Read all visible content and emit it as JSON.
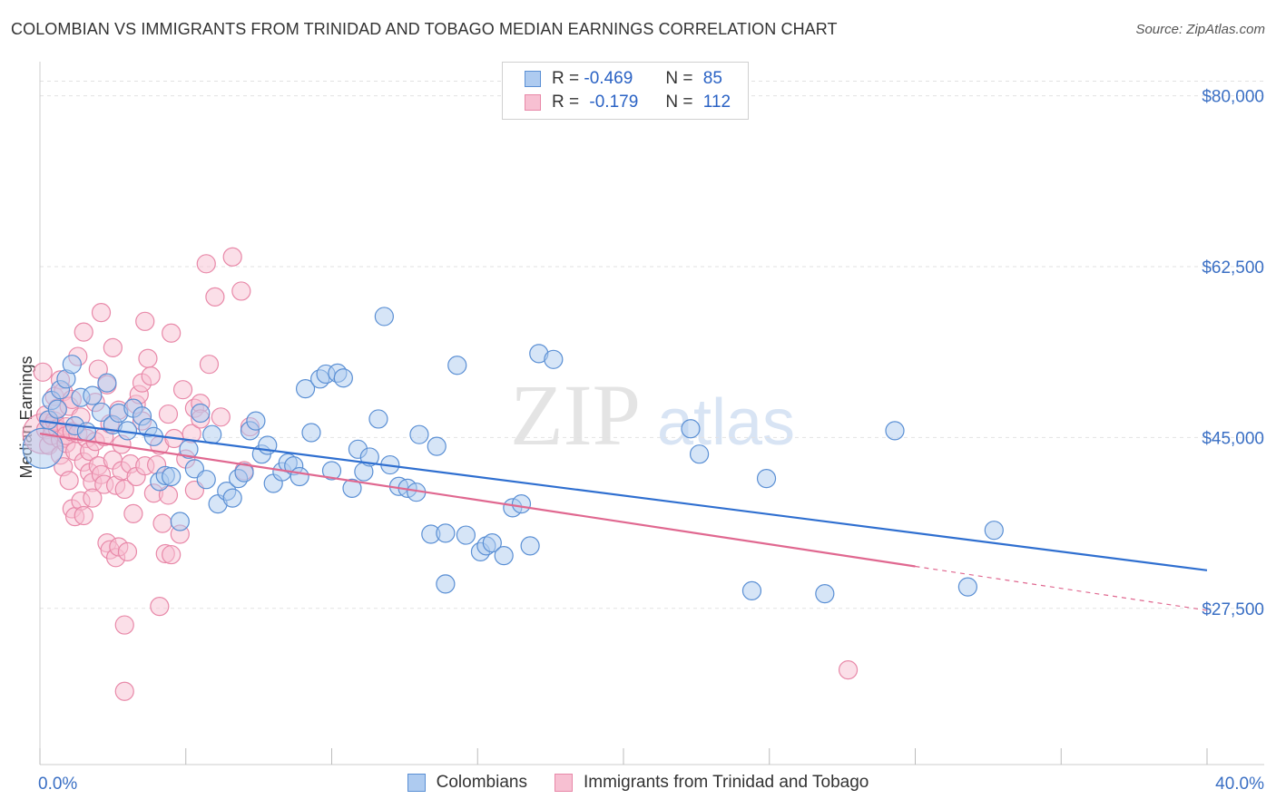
{
  "title": "COLOMBIAN VS IMMIGRANTS FROM TRINIDAD AND TOBAGO MEDIAN EARNINGS CORRELATION CHART",
  "source": "Source: ZipAtlas.com",
  "watermark": {
    "zip": "ZIP",
    "atlas": "atlas"
  },
  "legend": {
    "r_label": "R =",
    "n_label": "N =",
    "rows": [
      {
        "r": "-0.469",
        "n": "85"
      },
      {
        "r": "-0.179",
        "n": "112"
      }
    ]
  },
  "colors": {
    "blue_fill": "#aecbf0",
    "blue_stroke": "#5a8fd4",
    "blue_line": "#2f6fd0",
    "pink_fill": "#f7c0d2",
    "pink_stroke": "#e888a8",
    "pink_line": "#e06890",
    "axis_text": "#3a6fc4",
    "grid": "#e2e2e2"
  },
  "chart_data": {
    "type": "scatter",
    "title": "COLOMBIAN VS IMMIGRANTS FROM TRINIDAD AND TOBAGO MEDIAN EARNINGS CORRELATION CHART",
    "xlabel": "",
    "ylabel": "Median Earnings",
    "x_unit": "percent",
    "xlim": [
      0,
      40
    ],
    "ylim": [
      11500,
      83500
    ],
    "x_tick_labels": [
      "0.0%",
      "40.0%"
    ],
    "y_ticks": [
      27500,
      45000,
      62500,
      80000
    ],
    "y_tick_labels": [
      "$27,500",
      "$45,000",
      "$62,500",
      "$80,000"
    ],
    "grid": true,
    "legend_position": "top-center",
    "series": [
      {
        "name": "Colombians",
        "r": -0.469,
        "n": 85,
        "trend": {
          "x0": 0,
          "y0": 46700,
          "x1": 40,
          "y1": 31400
        },
        "points": [
          [
            0.1,
            43900,
            22
          ],
          [
            0.3,
            46800,
            10
          ],
          [
            0.4,
            48800,
            10
          ],
          [
            0.6,
            47900,
            10
          ],
          [
            0.7,
            49900,
            10
          ],
          [
            0.9,
            51000,
            10
          ],
          [
            1.1,
            52500,
            10
          ],
          [
            1.2,
            46200,
            10
          ],
          [
            1.4,
            49100,
            10
          ],
          [
            1.6,
            45600,
            10
          ],
          [
            1.8,
            49300,
            10
          ],
          [
            2.1,
            47600,
            10
          ],
          [
            2.3,
            50600,
            10
          ],
          [
            2.5,
            46300,
            10
          ],
          [
            2.7,
            47500,
            10
          ],
          [
            3.0,
            45700,
            10
          ],
          [
            3.2,
            48000,
            10
          ],
          [
            3.5,
            47200,
            10
          ],
          [
            3.7,
            46000,
            10
          ],
          [
            3.9,
            45100,
            10
          ],
          [
            4.1,
            40500,
            10
          ],
          [
            4.3,
            41100,
            10
          ],
          [
            4.5,
            41000,
            10
          ],
          [
            4.8,
            36400,
            10
          ],
          [
            5.1,
            43800,
            10
          ],
          [
            5.3,
            41800,
            10
          ],
          [
            5.5,
            47500,
            10
          ],
          [
            5.7,
            40700,
            10
          ],
          [
            5.9,
            45300,
            10
          ],
          [
            6.1,
            38200,
            10
          ],
          [
            6.4,
            39500,
            10
          ],
          [
            6.6,
            38800,
            10
          ],
          [
            6.8,
            40800,
            10
          ],
          [
            7.0,
            41400,
            10
          ],
          [
            7.2,
            45700,
            10
          ],
          [
            7.4,
            46700,
            10
          ],
          [
            7.6,
            43300,
            10
          ],
          [
            7.8,
            44200,
            10
          ],
          [
            8.0,
            40300,
            10
          ],
          [
            8.3,
            41500,
            10
          ],
          [
            8.5,
            42400,
            10
          ],
          [
            8.7,
            42100,
            10
          ],
          [
            8.9,
            41000,
            10
          ],
          [
            9.1,
            50000,
            10
          ],
          [
            9.3,
            45500,
            10
          ],
          [
            9.6,
            51000,
            10
          ],
          [
            9.8,
            51500,
            10
          ],
          [
            10.0,
            41600,
            10
          ],
          [
            10.2,
            51600,
            10
          ],
          [
            10.4,
            51100,
            10
          ],
          [
            10.7,
            39800,
            10
          ],
          [
            10.9,
            43800,
            10
          ],
          [
            11.1,
            41500,
            10
          ],
          [
            11.3,
            43000,
            10
          ],
          [
            11.6,
            46900,
            10
          ],
          [
            11.8,
            57400,
            10
          ],
          [
            12.0,
            42200,
            10
          ],
          [
            12.3,
            40000,
            10
          ],
          [
            12.6,
            39800,
            10
          ],
          [
            12.9,
            39400,
            10
          ],
          [
            13.0,
            45300,
            10
          ],
          [
            13.4,
            35100,
            10
          ],
          [
            13.6,
            44100,
            10
          ],
          [
            13.9,
            35200,
            10
          ],
          [
            13.9,
            30000,
            10
          ],
          [
            14.3,
            52400,
            10
          ],
          [
            14.6,
            35000,
            10
          ],
          [
            15.1,
            33300,
            10
          ],
          [
            15.3,
            33900,
            10
          ],
          [
            15.5,
            34200,
            10
          ],
          [
            15.9,
            32900,
            10
          ],
          [
            16.2,
            37800,
            10
          ],
          [
            16.5,
            38200,
            10
          ],
          [
            16.8,
            33900,
            10
          ],
          [
            17.1,
            53600,
            10
          ],
          [
            17.6,
            53000,
            10
          ],
          [
            22.3,
            45900,
            10
          ],
          [
            22.6,
            43300,
            10
          ],
          [
            24.4,
            29300,
            10
          ],
          [
            24.9,
            40800,
            10
          ],
          [
            26.9,
            29000,
            10
          ],
          [
            29.3,
            45700,
            10
          ],
          [
            31.8,
            29700,
            10
          ],
          [
            32.7,
            35500,
            10
          ]
        ]
      },
      {
        "name": "Immigrants from Trinidad and Tobago",
        "r": -0.179,
        "n": 112,
        "trend": {
          "x0": 0,
          "y0": 45400,
          "x1": 30,
          "y1": 31800
        },
        "trend_extension": {
          "x0": 30,
          "y0": 31800,
          "x1": 40,
          "y1": 27300
        },
        "points": [
          [
            0.1,
            45400,
            22
          ],
          [
            0.1,
            51700,
            10
          ],
          [
            0.2,
            47300,
            10
          ],
          [
            0.2,
            45800,
            10
          ],
          [
            0.3,
            46800,
            10
          ],
          [
            0.3,
            44200,
            10
          ],
          [
            0.4,
            46200,
            10
          ],
          [
            0.4,
            45200,
            10
          ],
          [
            0.5,
            49200,
            10
          ],
          [
            0.5,
            46700,
            10
          ],
          [
            0.6,
            45900,
            10
          ],
          [
            0.6,
            48000,
            10
          ],
          [
            0.7,
            44800,
            10
          ],
          [
            0.7,
            50900,
            10
          ],
          [
            0.7,
            43200,
            10
          ],
          [
            0.8,
            42000,
            10
          ],
          [
            0.8,
            49700,
            10
          ],
          [
            0.9,
            46100,
            10
          ],
          [
            0.9,
            44400,
            10
          ],
          [
            0.9,
            45200,
            10
          ],
          [
            1.0,
            48200,
            10
          ],
          [
            1.0,
            40600,
            10
          ],
          [
            1.1,
            37700,
            10
          ],
          [
            1.1,
            45600,
            10
          ],
          [
            1.1,
            48900,
            10
          ],
          [
            1.2,
            36900,
            10
          ],
          [
            1.2,
            43600,
            10
          ],
          [
            1.3,
            53300,
            10
          ],
          [
            1.3,
            45400,
            10
          ],
          [
            1.4,
            47100,
            10
          ],
          [
            1.4,
            38500,
            10
          ],
          [
            1.5,
            42500,
            10
          ],
          [
            1.5,
            55800,
            10
          ],
          [
            1.5,
            37000,
            10
          ],
          [
            1.6,
            44900,
            10
          ],
          [
            1.7,
            41400,
            10
          ],
          [
            1.7,
            43600,
            10
          ],
          [
            1.8,
            40400,
            10
          ],
          [
            1.8,
            38800,
            10
          ],
          [
            1.9,
            48600,
            10
          ],
          [
            1.9,
            44600,
            10
          ],
          [
            2.0,
            52000,
            10
          ],
          [
            2.0,
            42100,
            10
          ],
          [
            2.1,
            57800,
            10
          ],
          [
            2.1,
            41200,
            10
          ],
          [
            2.2,
            45100,
            10
          ],
          [
            2.2,
            40200,
            10
          ],
          [
            2.3,
            34200,
            10
          ],
          [
            2.3,
            50400,
            10
          ],
          [
            2.4,
            46400,
            10
          ],
          [
            2.4,
            33500,
            10
          ],
          [
            2.5,
            54200,
            10
          ],
          [
            2.5,
            42700,
            10
          ],
          [
            2.6,
            40100,
            10
          ],
          [
            2.6,
            32700,
            10
          ],
          [
            2.7,
            47800,
            10
          ],
          [
            2.7,
            33800,
            10
          ],
          [
            2.8,
            41600,
            10
          ],
          [
            2.8,
            44300,
            10
          ],
          [
            2.9,
            39700,
            10
          ],
          [
            2.9,
            25800,
            10
          ],
          [
            2.9,
            19000,
            10
          ],
          [
            3.0,
            33300,
            10
          ],
          [
            3.1,
            42300,
            10
          ],
          [
            3.2,
            37200,
            10
          ],
          [
            3.3,
            48400,
            10
          ],
          [
            3.3,
            41000,
            10
          ],
          [
            3.4,
            49400,
            10
          ],
          [
            3.5,
            46700,
            10
          ],
          [
            3.5,
            50600,
            10
          ],
          [
            3.6,
            56900,
            10
          ],
          [
            3.6,
            42100,
            10
          ],
          [
            3.7,
            53100,
            10
          ],
          [
            3.8,
            51300,
            10
          ],
          [
            3.9,
            39300,
            10
          ],
          [
            4.0,
            42200,
            10
          ],
          [
            4.1,
            27700,
            10
          ],
          [
            4.1,
            44200,
            10
          ],
          [
            4.2,
            36200,
            10
          ],
          [
            4.3,
            33100,
            10
          ],
          [
            4.4,
            39100,
            10
          ],
          [
            4.4,
            47400,
            10
          ],
          [
            4.5,
            55700,
            10
          ],
          [
            4.5,
            33000,
            10
          ],
          [
            4.6,
            44900,
            10
          ],
          [
            4.8,
            35100,
            10
          ],
          [
            4.9,
            49900,
            10
          ],
          [
            5.0,
            42800,
            10
          ],
          [
            5.2,
            45400,
            10
          ],
          [
            5.3,
            39600,
            10
          ],
          [
            5.3,
            48000,
            10
          ],
          [
            5.5,
            48500,
            10
          ],
          [
            5.5,
            46900,
            10
          ],
          [
            5.7,
            62800,
            10
          ],
          [
            5.8,
            52500,
            10
          ],
          [
            6.0,
            59400,
            10
          ],
          [
            6.2,
            47100,
            10
          ],
          [
            6.6,
            63500,
            10
          ],
          [
            6.9,
            60000,
            10
          ],
          [
            7.0,
            41600,
            10
          ],
          [
            7.2,
            46100,
            10
          ],
          [
            27.7,
            21200,
            10
          ]
        ]
      }
    ]
  }
}
